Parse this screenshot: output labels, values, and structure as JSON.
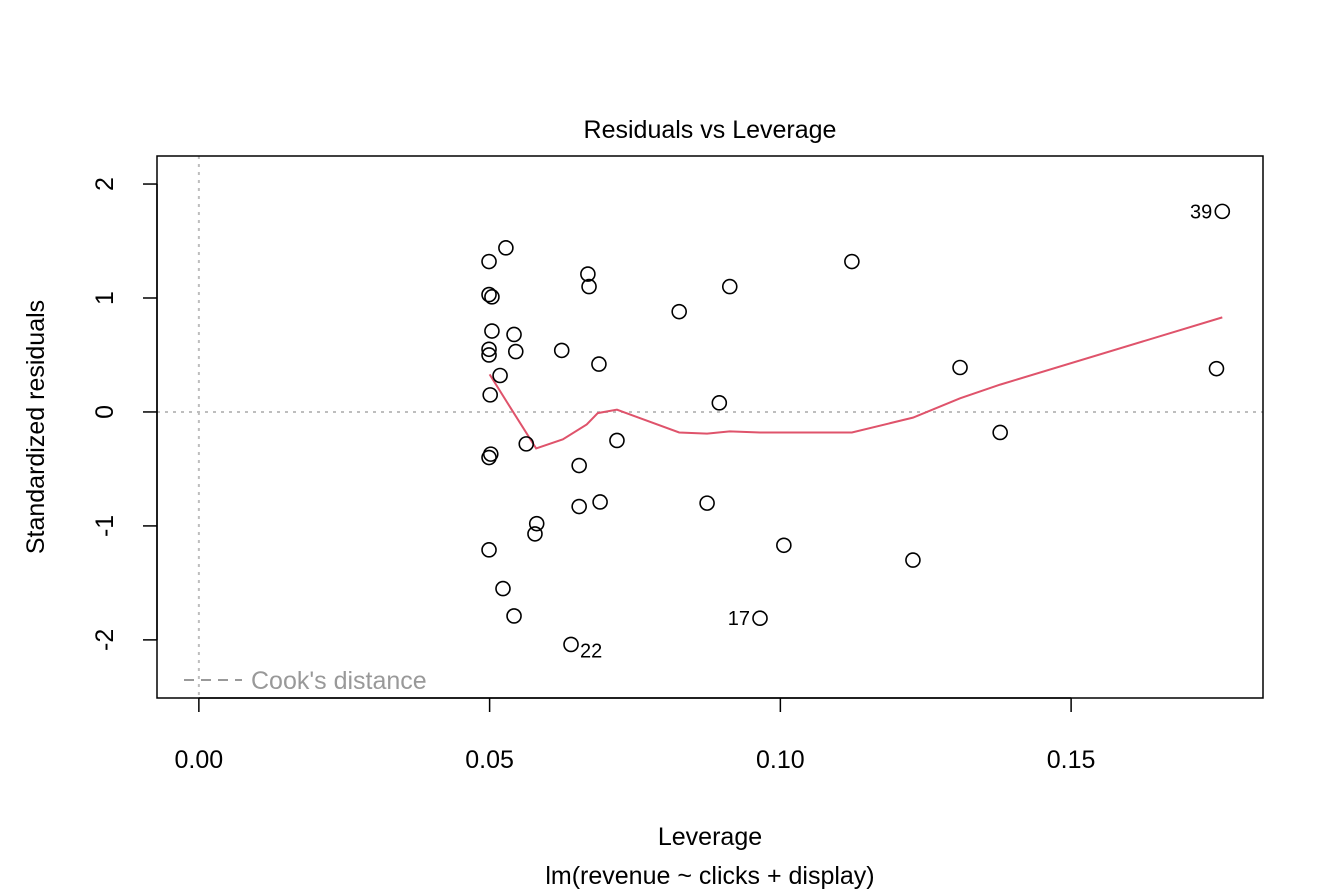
{
  "chart_data": {
    "type": "scatter",
    "title": "Residuals vs Leverage",
    "xlabel": "Leverage",
    "subtitle": "lm(revenue ~ clicks + display)",
    "ylabel": "Standardized residuals",
    "xlim": [
      -0.0072,
      0.183
    ],
    "ylim": [
      -2.51,
      2.246
    ],
    "xticks": [
      0.0,
      0.05,
      0.1,
      0.15
    ],
    "xtick_labels": [
      "0.00",
      "0.05",
      "0.10",
      "0.15"
    ],
    "yticks": [
      -2,
      -1,
      0,
      1,
      2
    ],
    "ytick_labels": [
      "-2",
      "-1",
      "0",
      "1",
      "2"
    ],
    "grid": false,
    "legend": {
      "position": "bottom-left",
      "label": "Cook's distance",
      "color": "#999999"
    },
    "colors": {
      "points": "#000000",
      "smooth": "#DF536B",
      "reference": "#BEBEBE"
    },
    "points": [
      {
        "x": 0.176,
        "y": 1.76,
        "label": "39"
      },
      {
        "x": 0.175,
        "y": 0.38
      },
      {
        "x": 0.0528,
        "y": 1.44
      },
      {
        "x": 0.0499,
        "y": 1.32
      },
      {
        "x": 0.0669,
        "y": 1.21
      },
      {
        "x": 0.0671,
        "y": 1.1
      },
      {
        "x": 0.0499,
        "y": 1.03
      },
      {
        "x": 0.0504,
        "y": 1.01
      },
      {
        "x": 0.1123,
        "y": 1.32
      },
      {
        "x": 0.0913,
        "y": 1.1
      },
      {
        "x": 0.0826,
        "y": 0.88
      },
      {
        "x": 0.0504,
        "y": 0.71
      },
      {
        "x": 0.0542,
        "y": 0.68
      },
      {
        "x": 0.0499,
        "y": 0.55
      },
      {
        "x": 0.0499,
        "y": 0.5
      },
      {
        "x": 0.0545,
        "y": 0.53
      },
      {
        "x": 0.0624,
        "y": 0.54
      },
      {
        "x": 0.0688,
        "y": 0.42
      },
      {
        "x": 0.0518,
        "y": 0.32
      },
      {
        "x": 0.1309,
        "y": 0.39
      },
      {
        "x": 0.0501,
        "y": 0.15
      },
      {
        "x": 0.0895,
        "y": 0.08
      },
      {
        "x": 0.0563,
        "y": -0.28
      },
      {
        "x": 0.0719,
        "y": -0.25
      },
      {
        "x": 0.1378,
        "y": -0.18
      },
      {
        "x": 0.0502,
        "y": -0.37
      },
      {
        "x": 0.0499,
        "y": -0.4
      },
      {
        "x": 0.0654,
        "y": -0.47
      },
      {
        "x": 0.0654,
        "y": -0.83
      },
      {
        "x": 0.069,
        "y": -0.79
      },
      {
        "x": 0.0874,
        "y": -0.8
      },
      {
        "x": 0.0581,
        "y": -0.98
      },
      {
        "x": 0.0578,
        "y": -1.07
      },
      {
        "x": 0.0499,
        "y": -1.21
      },
      {
        "x": 0.1006,
        "y": -1.17
      },
      {
        "x": 0.1228,
        "y": -1.3
      },
      {
        "x": 0.0523,
        "y": -1.55
      },
      {
        "x": 0.0542,
        "y": -1.79
      },
      {
        "x": 0.0965,
        "y": -1.81,
        "label": "17"
      },
      {
        "x": 0.064,
        "y": -2.04,
        "label": "22"
      }
    ],
    "smooth": [
      {
        "x": 0.05,
        "y": 0.33
      },
      {
        "x": 0.0538,
        "y": 0.02
      },
      {
        "x": 0.058,
        "y": -0.32
      },
      {
        "x": 0.0626,
        "y": -0.24
      },
      {
        "x": 0.0667,
        "y": -0.11
      },
      {
        "x": 0.0686,
        "y": -0.01
      },
      {
        "x": 0.0719,
        "y": 0.02
      },
      {
        "x": 0.0826,
        "y": -0.18
      },
      {
        "x": 0.0874,
        "y": -0.19
      },
      {
        "x": 0.0913,
        "y": -0.17
      },
      {
        "x": 0.0965,
        "y": -0.18
      },
      {
        "x": 0.1006,
        "y": -0.18
      },
      {
        "x": 0.1123,
        "y": -0.18
      },
      {
        "x": 0.1228,
        "y": -0.05
      },
      {
        "x": 0.1309,
        "y": 0.12
      },
      {
        "x": 0.1378,
        "y": 0.24
      },
      {
        "x": 0.176,
        "y": 0.83
      }
    ]
  }
}
